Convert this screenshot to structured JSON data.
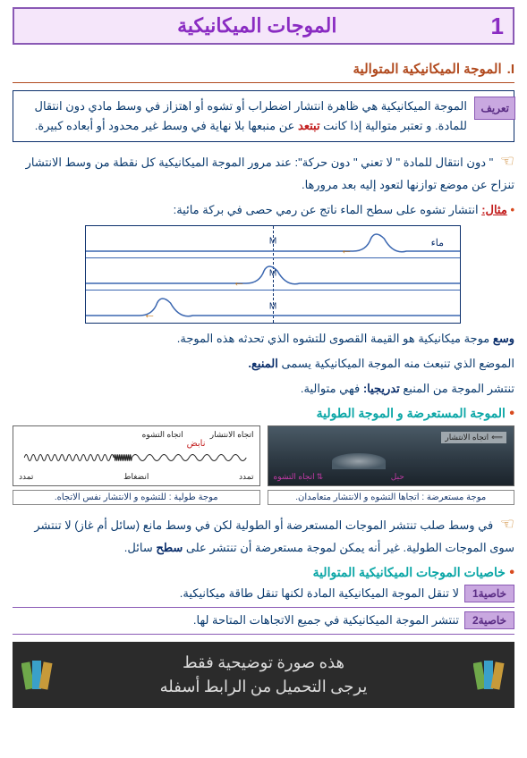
{
  "title": {
    "number": "1",
    "text": "الموجات الميكانيكية"
  },
  "section1": {
    "roman": "I.",
    "text": "الموجة الميكانيكية المتوالية"
  },
  "definition": {
    "label": "تعريف",
    "body": "الموجة الميكانيكية هي ظاهرة انتشار اضطراب أو تشوه أو اهتزاز في وسط مادي دون انتقال للمادة. و تعتبر متوالية إذا كانت تبتعد عن منبعها بلا نهاية في وسط غير محدود أو أبعاده كبيرة.",
    "hl": "تبتعد"
  },
  "note1": {
    "text_a": "\" دون انتقال للمادة \" لا تعني \" دون حركة\": عند مرور الموجة الميكانيكية كل نقطة من وسط الانتشار تنزاح عن موضع توازنها لتعود إليه بعد مرورها."
  },
  "example": {
    "label": "مثال:",
    "text": "انتشار تشوه على سطح الماء ناتج عن رمي حصى في بركة مائية:"
  },
  "wavefig": {
    "maa": "ماء",
    "m": "M"
  },
  "after_example": {
    "l1a": "وسع",
    "l1b": " موجة ميكانيكية هو القيمة القصوى للتشوه الذي تحدثه هذه الموجة.",
    "l2a": "الموضع الذي تنبعث منه الموجة الميكانيكية يسمى ",
    "l2b": "المنبع.",
    "l3a": "تنتشر الموجة من المنبع ",
    "l3b": "تدريجيا:",
    "l3c": " فهي متوالية."
  },
  "subhead1": "الموجة المستعرضة و الموجة الطولية",
  "fig_dark": {
    "arrow_label": "اتجاه الانتشار",
    "vert": "اتجاه التشوه",
    "habl": "حبل"
  },
  "fig_light": {
    "top1": "اتجاه الانتشار",
    "top2": "اتجاه التشوه",
    "red": "نابض",
    "bot1": "تمدد",
    "bot2": "انضغاط",
    "bot3": "تمدد"
  },
  "caption_r": "موجة مستعرضة : اتجاها التشوه و الانتشار متعامدان.",
  "caption_l": "موجة طولية : للتشوه و الانتشار نفس الاتجاه.",
  "note2": {
    "text": "في وسط صلب تنتشر الموجات المستعرضة أو الطولية لكن في وسط مانع (سائل أم غاز) لا تنتشر سوى الموجات الطولية. غير أنه يمكن لموجة مستعرضة أن تنتشر على ",
    "hl": "سطح",
    "tail": " سائل."
  },
  "subhead2": "خاصيات الموجات الميكانيكية المتوالية",
  "prop1": {
    "label": "خاصية1",
    "text": "لا تنقل الموجة الميكانيكية المادة لكنها تنقل طاقة ميكانيكية."
  },
  "prop2": {
    "label": "خاصية2",
    "text": "تنتشر الموجة الميكانيكية في جميع الاتجاهات المتاحة لها."
  },
  "footer": {
    "line1": "هذه صورة توضيحية فقط",
    "line2": "يرجى التحميل من الرابط أسفله"
  },
  "colors": {
    "purple": "#8a59b5",
    "purple_light": "#c9a8e0",
    "orange": "#c77b1e",
    "red": "#c21b1b",
    "teal": "#0aa6a6",
    "navy": "#0b2f6c"
  }
}
